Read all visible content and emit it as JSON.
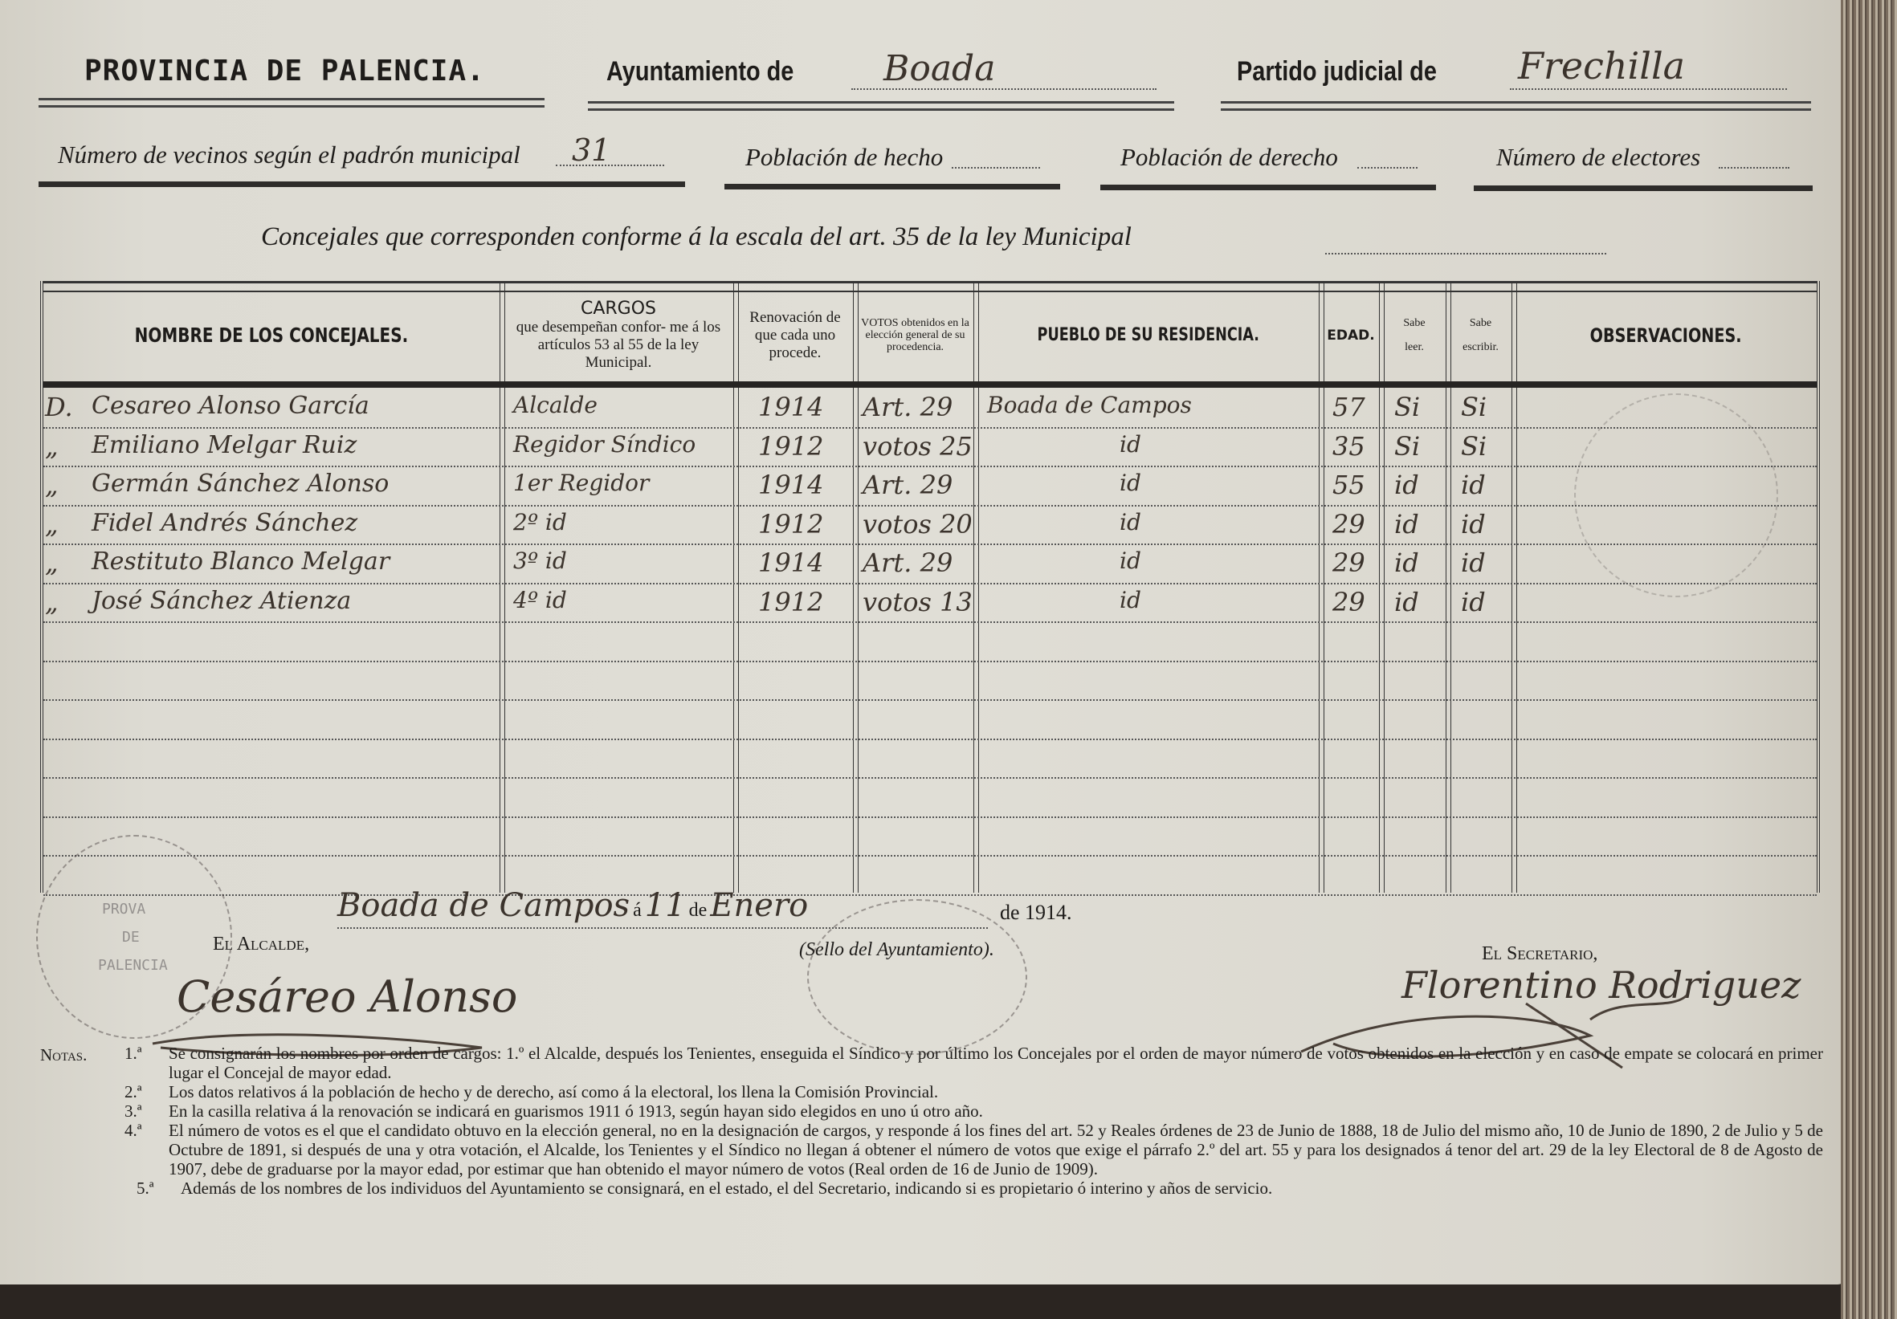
{
  "header": {
    "provincia": "PROVINCIA DE PALENCIA.",
    "ayuntamiento_label": "Ayuntamiento de",
    "ayuntamiento_value": "Boada",
    "partido_label": "Partido judicial de",
    "partido_value": "Frechilla",
    "vecinos_label": "Número de vecinos según el padrón municipal",
    "vecinos_value": "31",
    "poblacion_hecho_label": "Población de hecho",
    "poblacion_derecho_label": "Población de derecho",
    "electores_label": "Número de electores",
    "concejales_label": "Concejales que corresponden conforme á la escala del art. 35 de la ley Municipal"
  },
  "table": {
    "columns": [
      "NOMBRE DE LOS CONCEJALES.",
      "CARGOS",
      "que desempeñan confor- me á los artículos 53 al 55 de la ley Municipal.",
      "Renovación de que cada uno procede.",
      "VOTOS obtenidos en la elección general de su procedencia.",
      "PUEBLO DE SU RESIDENCIA.",
      "EDAD.",
      "Sabe leer.",
      "Sabe escribir.",
      "OBSERVACIONES."
    ],
    "rows": [
      {
        "prefix": "D.",
        "nombre": "Cesareo Alonso García",
        "cargo": "Alcalde",
        "renovacion": "1914",
        "votos": "Art. 29",
        "pueblo": "Boada de Campos",
        "edad": "57",
        "leer": "Si",
        "escribir": "Si"
      },
      {
        "prefix": "„",
        "nombre": "Emiliano Melgar Ruiz",
        "cargo": "Regidor Síndico",
        "renovacion": "1912",
        "votos": "votos 25",
        "pueblo": "id",
        "edad": "35",
        "leer": "Si",
        "escribir": "Si"
      },
      {
        "prefix": "„",
        "nombre": "Germán Sánchez Alonso",
        "cargo": "1er Regidor",
        "renovacion": "1914",
        "votos": "Art. 29",
        "pueblo": "id",
        "edad": "55",
        "leer": "id",
        "escribir": "id"
      },
      {
        "prefix": "„",
        "nombre": "Fidel Andrés Sánchez",
        "cargo": "2º id",
        "renovacion": "1912",
        "votos": "votos 20",
        "pueblo": "id",
        "edad": "29",
        "leer": "id",
        "escribir": "id"
      },
      {
        "prefix": "„",
        "nombre": "Restituto Blanco Melgar",
        "cargo": "3º id",
        "renovacion": "1914",
        "votos": "Art. 29",
        "pueblo": "id",
        "edad": "29",
        "leer": "id",
        "escribir": "id"
      },
      {
        "prefix": "„",
        "nombre": "José Sánchez Atienza",
        "cargo": "4º id",
        "renovacion": "1912",
        "votos": "votos 13",
        "pueblo": "id",
        "edad": "29",
        "leer": "id",
        "escribir": "id"
      }
    ]
  },
  "footer": {
    "lugar": "Boada de Campos",
    "a": "á",
    "dia": "11",
    "de1": "de",
    "mes": "Enero",
    "anio": "de 1914.",
    "alcalde_label": "El Alcalde,",
    "sello_label": "(Sello del Ayuntamiento).",
    "secretario_label": "El Secretario,",
    "alcalde_firma": "Cesáreo Alonso",
    "secretario_firma": "Florentino Rodriguez",
    "stamp_text": "AYUNTAMIENTO DE BOADA · PROVA DE PALENCIA"
  },
  "notes": {
    "label": "Notas.",
    "items": [
      {
        "num": "1.ª",
        "text": "Se consignarán los nombres por orden de cargos: 1.º el Alcalde, después los Tenientes, enseguida el Síndico y por último los Concejales por el orden de mayor número de votos obtenidos en la elección y en caso de empate se colocará en primer lugar el Concejal de mayor edad."
      },
      {
        "num": "2.ª",
        "text": "Los datos relativos á la población de hecho y de derecho, así como á la electoral, los llena la Comisión Provincial."
      },
      {
        "num": "3.ª",
        "text": "En la casilla relativa á la renovación se indicará en guarismos 1911 ó 1913, según hayan sido elegidos en uno ú otro año."
      },
      {
        "num": "4.ª",
        "text": "El número de votos es el que el candidato obtuvo en la elección general, no en la designación de cargos, y responde á los fines del art. 52 y Reales órdenes de 23 de Junio de 1888, 18 de Julio del mismo año, 10 de Junio de 1890, 2 de Julio y 5 de Octubre de 1891, si después de una y otra votación, el Alcalde, los Tenientes y el Síndico no llegan á obtener el número de votos que exige el párrafo 2.º del art. 55 y para los designados á tenor del art. 29 de la ley Electoral de 8 de Agosto de 1907, debe de graduarse por la mayor edad, por estimar que han obtenido el mayor número de votos (Real orden de 16 de Junio de 1909)."
      },
      {
        "num": "5.ª",
        "text": "Además de los nombres de los individuos del Ayuntamiento se consignará, en el estado, el del Secretario, indicando si es propietario ó interino y años de servicio."
      }
    ]
  }
}
